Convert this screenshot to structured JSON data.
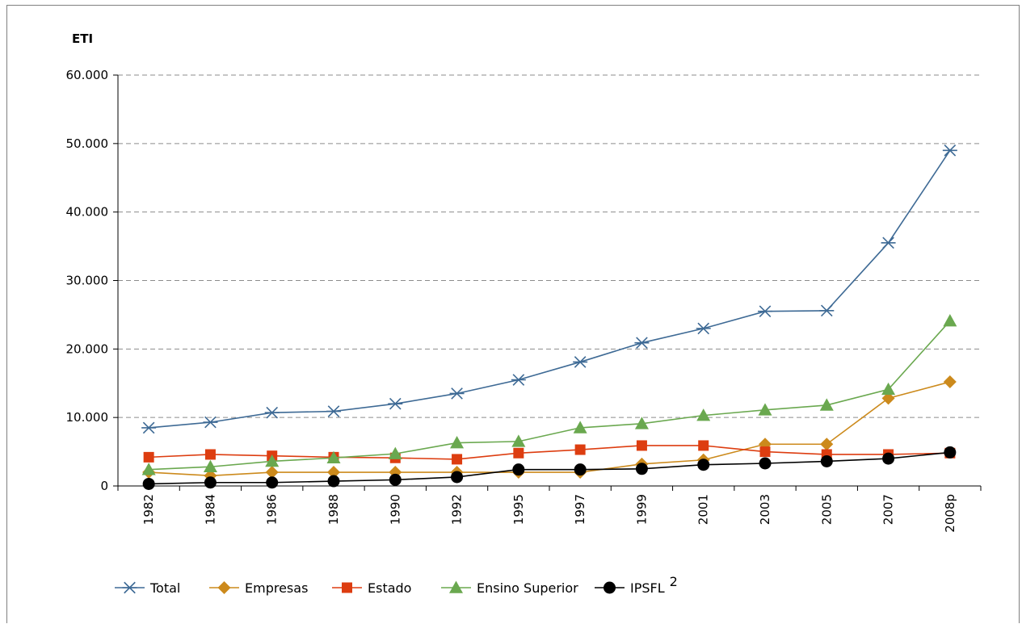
{
  "chart_data": {
    "type": "line",
    "title": "",
    "ylabel": "ETI",
    "xlabel": "",
    "ylim": [
      0,
      60000
    ],
    "yticks": [
      0,
      10000,
      20000,
      30000,
      40000,
      50000,
      60000
    ],
    "ytick_labels": [
      "0",
      "10.000",
      "20.000",
      "30.000",
      "40.000",
      "50.000",
      "60.000"
    ],
    "categories": [
      "1982",
      "1984",
      "1986",
      "1988",
      "1990",
      "1992",
      "1995",
      "1997",
      "1999",
      "2001",
      "2003",
      "2005",
      "2007",
      "2008p"
    ],
    "grid": "horizontal dashed",
    "legend_position": "bottom",
    "series": [
      {
        "name": "Total",
        "marker": "star",
        "color": "#3e6a95",
        "values": [
          8500,
          9300,
          10700,
          10900,
          12000,
          13500,
          15500,
          18100,
          20900,
          23000,
          25500,
          25600,
          35500,
          49000
        ]
      },
      {
        "name": "Empresas",
        "marker": "diamond",
        "color": "#cc8a1c",
        "values": [
          2000,
          1500,
          2000,
          2000,
          2000,
          2000,
          2000,
          2000,
          3200,
          3800,
          6100,
          6100,
          12800,
          15200
        ]
      },
      {
        "name": "Estado",
        "marker": "square",
        "color": "#dd3d10",
        "values": [
          4200,
          4600,
          4400,
          4200,
          4100,
          3900,
          4800,
          5300,
          5900,
          5900,
          5000,
          4600,
          4600,
          4800
        ]
      },
      {
        "name": "Ensino Superior",
        "marker": "triangle",
        "color": "#6aa84f",
        "values": [
          2400,
          2800,
          3600,
          4100,
          4700,
          6300,
          6500,
          8500,
          9100,
          10300,
          11100,
          11800,
          14100,
          24100
        ]
      },
      {
        "name": "IPSFL",
        "superscript": "2",
        "marker": "circle",
        "color": "#000000",
        "values": [
          300,
          500,
          500,
          700,
          900,
          1300,
          2400,
          2400,
          2500,
          3100,
          3300,
          3600,
          4000,
          4900
        ]
      }
    ]
  }
}
